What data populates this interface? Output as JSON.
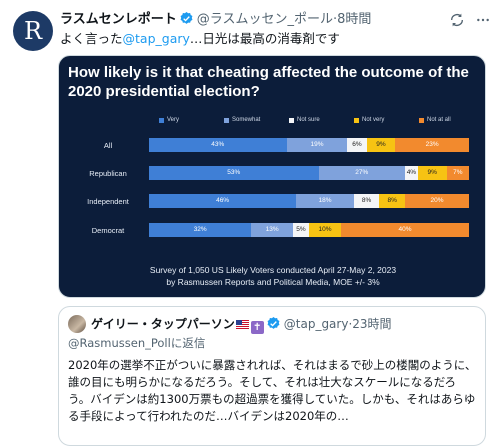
{
  "tweet": {
    "avatar_letter": "R",
    "display_name": "ラスムセンレポート",
    "handle": "@ラスムッセン_ポール",
    "time": "8時間",
    "text_prefix": "よく言った",
    "mention": "@tap_gary",
    "text_suffix": "…日光は最高の消毒剤です"
  },
  "chart_data": {
    "type": "bar",
    "orientation": "horizontal-stacked",
    "title": "How likely is it that cheating affected the outcome of the 2020 presidential election?",
    "legend_placement": "top",
    "categories": [
      "All",
      "Republican",
      "Independent",
      "Democrat"
    ],
    "series": [
      {
        "name": "Very",
        "color": "#3f7fd6",
        "values": [
          43,
          53,
          46,
          32
        ],
        "labels": [
          "43%",
          "53%",
          "46%",
          "32%"
        ],
        "label_color": "#ffffff"
      },
      {
        "name": "Somewhat",
        "color": "#7fa2dc",
        "values": [
          19,
          27,
          18,
          13
        ],
        "labels": [
          "19%",
          "27%",
          "18%",
          "13%"
        ],
        "label_color": "#ffffff"
      },
      {
        "name": "Not sure",
        "color": "#f4f5f7",
        "values": [
          6,
          4,
          8,
          5
        ],
        "labels": [
          "6%",
          "4%",
          "8%",
          "5%"
        ],
        "label_color": "#222222"
      },
      {
        "name": "Not very",
        "color": "#f7c313",
        "values": [
          9,
          9,
          8,
          10
        ],
        "labels": [
          "9%",
          "9%",
          "8%",
          "10%"
        ],
        "label_color": "#222222"
      },
      {
        "name": "Not at all",
        "color": "#f28a2e",
        "values": [
          23,
          7,
          20,
          40
        ],
        "labels": [
          "23%",
          "7%",
          "20%",
          "40%"
        ],
        "label_color": "#ffffff"
      }
    ],
    "footnote_line1": "Survey of 1,050 US Likely Voters conducted April 27-May 2, 2023",
    "footnote_line2": "by Rasmussen Reports and Political Media, MOE +/- 3%"
  },
  "quote": {
    "display_name": "ゲイリー・タップパーソン",
    "handle": "@tap_gary",
    "time": "23時間",
    "reply_to": "@Rasmussen_Pollに返信",
    "body": "2020年の選挙不正がついに暴露されれば、それはまるで砂上の楼閣のように、誰の目にも明らかになるだろう。そして、それは壮大なスケールになるだろう。バイデンは約1300万票もの超過票を獲得していた。しかも、それはあらゆる手段によって行われたのだ…バイデンは2020年の…"
  },
  "colors": {
    "accent": "#1d9bf0",
    "verified": "#1d9bf0",
    "chart_bg": "#0c1d3a"
  },
  "icons": {
    "verified": "verified-badge-icon",
    "repost": "repost-icon",
    "more": "more-icon"
  }
}
